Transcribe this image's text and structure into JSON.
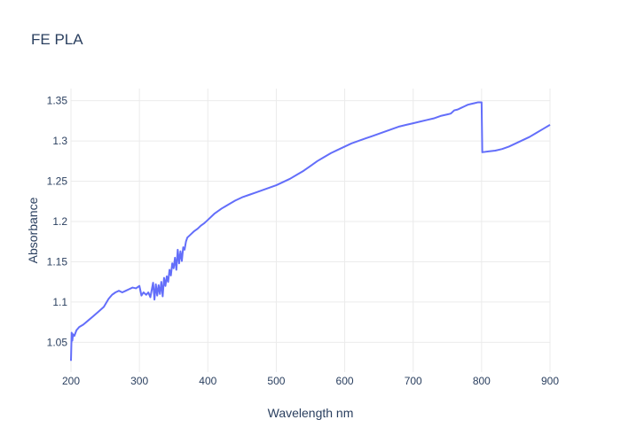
{
  "chart_data": {
    "type": "line",
    "title": "FE PLA",
    "xlabel": "Wavelength nm",
    "ylabel": "Absorbance",
    "xlim": [
      200,
      900
    ],
    "ylim": [
      1.013,
      1.365
    ],
    "xticks": [
      200,
      300,
      400,
      500,
      600,
      700,
      800,
      900
    ],
    "yticks": [
      1.05,
      1.1,
      1.15,
      1.2,
      1.25,
      1.3,
      1.35
    ],
    "ytick_labels": [
      "1.05",
      "1.1",
      "1.15",
      "1.2",
      "1.25",
      "1.3",
      "1.35"
    ],
    "grid": true,
    "legend": false,
    "color": "#636efa",
    "series": [
      {
        "x": [
          200,
          201,
          202,
          203,
          205,
          208,
          212,
          218,
          225,
          232,
          240,
          248,
          255,
          260,
          265,
          270,
          275,
          280,
          285,
          290,
          295,
          300,
          303,
          306,
          310,
          313,
          316,
          320,
          322,
          324,
          326,
          328,
          330,
          332,
          334,
          336,
          338,
          340,
          342,
          344,
          346,
          348,
          350,
          352,
          354,
          356,
          358,
          360,
          362,
          364,
          366,
          368,
          370,
          375,
          380,
          385,
          390,
          395,
          400,
          410,
          420,
          430,
          440,
          450,
          460,
          470,
          480,
          490,
          500,
          510,
          520,
          530,
          540,
          550,
          560,
          570,
          580,
          590,
          600,
          610,
          620,
          630,
          640,
          650,
          660,
          670,
          680,
          690,
          700,
          710,
          720,
          730,
          740,
          750,
          755,
          760,
          765,
          770,
          775,
          780,
          785,
          790,
          795,
          800,
          801,
          810,
          820,
          830,
          840,
          850,
          860,
          870,
          880,
          890,
          900
        ],
        "y": [
          1.027,
          1.062,
          1.052,
          1.06,
          1.058,
          1.065,
          1.069,
          1.072,
          1.077,
          1.082,
          1.088,
          1.094,
          1.104,
          1.109,
          1.112,
          1.114,
          1.112,
          1.114,
          1.116,
          1.118,
          1.117,
          1.12,
          1.108,
          1.112,
          1.109,
          1.112,
          1.106,
          1.124,
          1.103,
          1.122,
          1.108,
          1.121,
          1.11,
          1.125,
          1.107,
          1.13,
          1.12,
          1.132,
          1.125,
          1.14,
          1.133,
          1.148,
          1.142,
          1.155,
          1.14,
          1.165,
          1.148,
          1.163,
          1.151,
          1.168,
          1.165,
          1.175,
          1.18,
          1.184,
          1.188,
          1.191,
          1.195,
          1.198,
          1.202,
          1.21,
          1.216,
          1.221,
          1.226,
          1.23,
          1.233,
          1.236,
          1.239,
          1.242,
          1.245,
          1.249,
          1.253,
          1.258,
          1.263,
          1.269,
          1.275,
          1.28,
          1.285,
          1.289,
          1.293,
          1.297,
          1.3,
          1.303,
          1.306,
          1.309,
          1.312,
          1.315,
          1.318,
          1.32,
          1.322,
          1.324,
          1.326,
          1.328,
          1.331,
          1.333,
          1.334,
          1.338,
          1.339,
          1.341,
          1.343,
          1.345,
          1.346,
          1.347,
          1.348,
          1.348,
          1.286,
          1.287,
          1.288,
          1.29,
          1.293,
          1.297,
          1.301,
          1.305,
          1.31,
          1.315,
          1.32
        ]
      }
    ]
  }
}
